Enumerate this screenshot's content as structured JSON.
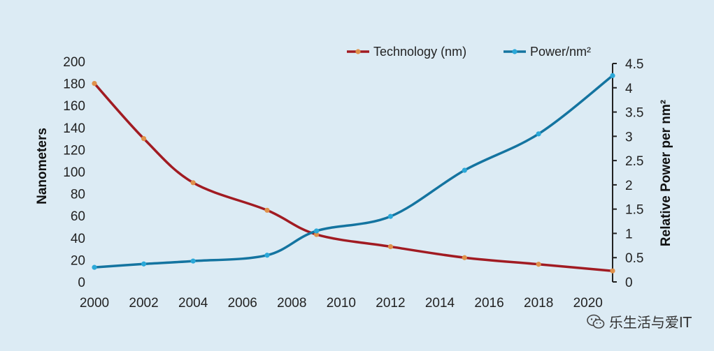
{
  "chart_data": {
    "type": "line",
    "x": [
      2000,
      2002,
      2004,
      2007,
      2009,
      2012,
      2015,
      2018,
      2021
    ],
    "xlim": [
      2000,
      2021
    ],
    "xticks": [
      "2000",
      "2002",
      "2004",
      "2006",
      "2008",
      "2010",
      "2012",
      "2014",
      "2016",
      "2018",
      "2020"
    ],
    "ylabel": "Nanometers",
    "ylim": [
      0,
      200
    ],
    "yticks": [
      "0",
      "20",
      "40",
      "60",
      "80",
      "100",
      "120",
      "140",
      "160",
      "180",
      "200"
    ],
    "y2label": "Relative Power per nm²",
    "y2lim": [
      0,
      4.5
    ],
    "y2ticks": [
      "0",
      "0.5",
      "1",
      "1.5",
      "2",
      "2.5",
      "3",
      "3.5",
      "4",
      "4.5"
    ],
    "series": [
      {
        "name": "Technology (nm)",
        "axis": "left",
        "color": "#a11b22",
        "marker_color": "#e0914a",
        "points": [
          [
            2000,
            180
          ],
          [
            2002,
            130
          ],
          [
            2004,
            90
          ],
          [
            2007,
            65
          ],
          [
            2009,
            43
          ],
          [
            2012,
            32
          ],
          [
            2015,
            22
          ],
          [
            2018,
            16
          ],
          [
            2021,
            10
          ]
        ]
      },
      {
        "name": "Power/nm²",
        "axis": "right",
        "color": "#1474a0",
        "marker_color": "#2ba8d8",
        "points": [
          [
            2000,
            0.3
          ],
          [
            2002,
            0.37
          ],
          [
            2004,
            0.43
          ],
          [
            2007,
            0.55
          ],
          [
            2009,
            1.05
          ],
          [
            2012,
            1.35
          ],
          [
            2015,
            2.3
          ],
          [
            2018,
            3.05
          ],
          [
            2021,
            4.25
          ]
        ]
      }
    ],
    "legend": "top-right",
    "grid": false
  },
  "watermark": {
    "icon": "wechat-icon",
    "text": "乐生活与爱IT"
  }
}
